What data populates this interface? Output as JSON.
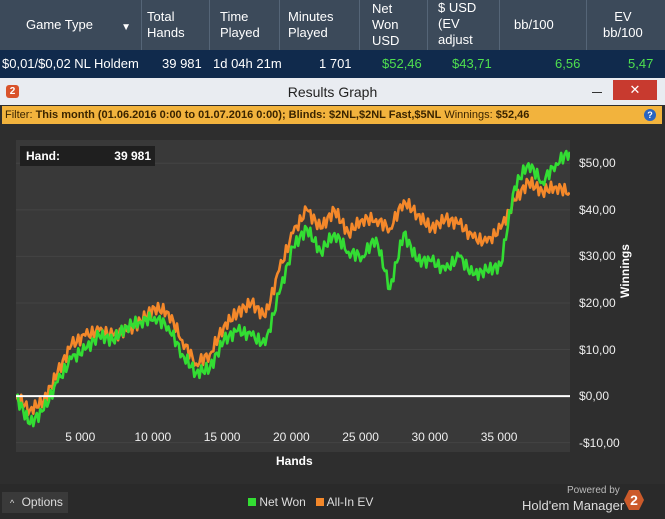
{
  "table": {
    "headers": {
      "game_type": "Game Type",
      "total_hands": [
        "Total",
        "Hands"
      ],
      "time_played": [
        "Time",
        "Played"
      ],
      "minutes_played": [
        "Minutes",
        "Played"
      ],
      "net_won": [
        "Net",
        "Won",
        "USD"
      ],
      "ev": [
        "$ USD",
        "(EV",
        "adjust"
      ],
      "bb100": "bb/100",
      "ev_bb100": [
        "EV",
        "bb/100"
      ]
    },
    "row": {
      "game_type": "$0,01/$0,02 NL Holdem",
      "total_hands": "39 981",
      "time_played": "1d 04h 21m",
      "minutes_played": "1 701",
      "net_won": "$52,46",
      "ev": "$43,71",
      "bb100": "6,56",
      "ev_bb100": "5,47"
    }
  },
  "window": {
    "title": "Results Graph",
    "filter_label": "Filter:",
    "filter_text": "This month (01.06.2016 0:00 to 01.07.2016 0:00); Blinds: $2NL,$2NL Fast,$5NL",
    "winnings_label": "Winnings:",
    "winnings_value": "$52,46",
    "hand_label": "Hand:",
    "hand_value": "39 981",
    "legend_net": "Net Won",
    "legend_ev": "All-In EV",
    "options": "Options",
    "powered_by": "Powered by",
    "brand": "Hold'em Manager",
    "brand_num": "2"
  },
  "colors": {
    "net": "#33dd33",
    "ev": "#f4882a",
    "zero_line": "#ffffff",
    "filter_bg": "#f2b33d"
  },
  "chart_data": {
    "type": "line",
    "xlabel": "Hands",
    "ylabel": "Winnings",
    "xlim": [
      0,
      40000
    ],
    "ylim": [
      -12,
      55
    ],
    "x_ticks": [
      5000,
      10000,
      15000,
      20000,
      25000,
      30000,
      35000
    ],
    "x_tick_labels": [
      "5 000",
      "10 000",
      "15 000",
      "20 000",
      "25 000",
      "30 000",
      "35 000"
    ],
    "y_ticks": [
      50,
      40,
      30,
      20,
      10,
      0,
      -10
    ],
    "y_tick_labels": [
      "$50,00",
      "$40,00",
      "$30,00",
      "$20,00",
      "$10,00",
      "$0,00",
      "-$10,00"
    ],
    "series": [
      {
        "name": "Net Won",
        "x": [
          0,
          1000,
          2000,
          3000,
          4000,
          5000,
          6000,
          7000,
          8000,
          9000,
          10000,
          11000,
          12000,
          13000,
          14000,
          15000,
          16000,
          17000,
          18000,
          19000,
          20000,
          21000,
          22000,
          23000,
          24000,
          25000,
          26000,
          27000,
          28000,
          29000,
          30000,
          31000,
          32000,
          33000,
          34000,
          35000,
          36000,
          37000,
          38000,
          39000,
          39981
        ],
        "y": [
          0,
          -6,
          -3,
          3,
          8,
          10,
          13,
          12,
          15,
          16,
          17,
          15,
          9,
          5,
          6,
          12,
          14,
          13,
          11,
          22,
          32,
          36,
          31,
          35,
          31,
          30,
          34,
          23,
          35,
          29,
          29,
          27,
          30,
          26,
          27,
          28,
          45,
          50,
          46,
          50,
          52.46
        ]
      },
      {
        "name": "All-In EV",
        "x": [
          0,
          1000,
          2000,
          3000,
          4000,
          5000,
          6000,
          7000,
          8000,
          9000,
          10000,
          11000,
          12000,
          13000,
          14000,
          15000,
          16000,
          17000,
          18000,
          19000,
          20000,
          21000,
          22000,
          23000,
          24000,
          25000,
          26000,
          27000,
          28000,
          29000,
          30000,
          31000,
          32000,
          33000,
          34000,
          35000,
          36000,
          37000,
          38000,
          39000,
          39981
        ],
        "y": [
          0,
          -3,
          -1,
          5,
          11,
          13,
          14,
          13,
          14,
          16,
          19,
          18,
          12,
          7,
          9,
          15,
          18,
          20,
          17,
          27,
          35,
          40,
          36,
          40,
          35,
          38,
          38,
          36,
          42,
          39,
          36,
          38,
          37,
          34,
          33,
          36,
          42,
          46,
          44,
          45,
          43.71
        ]
      }
    ]
  }
}
